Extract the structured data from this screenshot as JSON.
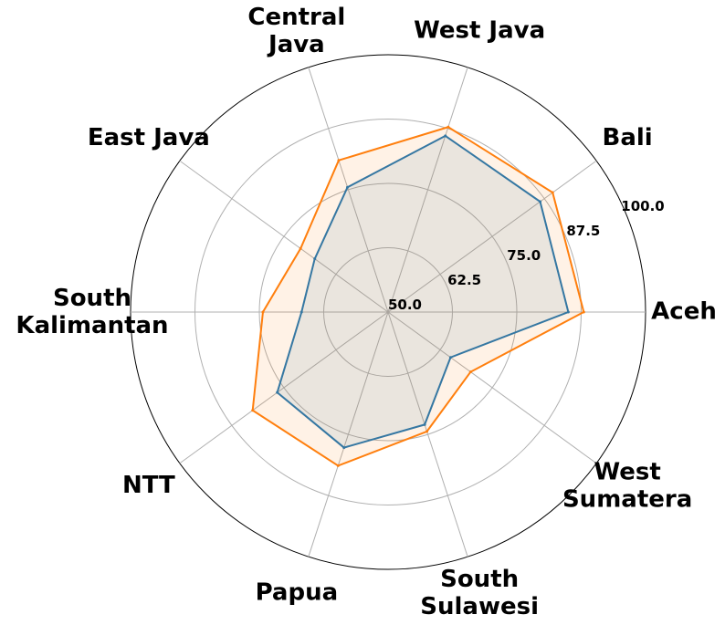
{
  "chart_data": {
    "type": "radar",
    "categories": [
      "Aceh",
      "Bali",
      "West Java",
      "Central\nJava",
      "East Java",
      "South\nKalimantan",
      "NTT",
      "Papua",
      "South\nSulawesi",
      "West\nSumatera"
    ],
    "series": [
      {
        "color": "#1f77b4",
        "values": [
          85,
          86.5,
          86,
          75.5,
          67.6,
          66.8,
          76.6,
          77.7,
          73,
          65
        ]
      },
      {
        "color": "#ff7f0e",
        "values": [
          88,
          89.5,
          87.8,
          81,
          71,
          74.3,
          82.5,
          81.4,
          74.4,
          69.8
        ]
      }
    ],
    "rlim": [
      50,
      100
    ],
    "rticks": [
      {
        "value": 50,
        "label": "50.0"
      },
      62.5,
      {
        "value": 75,
        "label": "75.0"
      },
      87.5,
      {
        "value": 100,
        "label": "100.0"
      }
    ],
    "grid": true
  }
}
